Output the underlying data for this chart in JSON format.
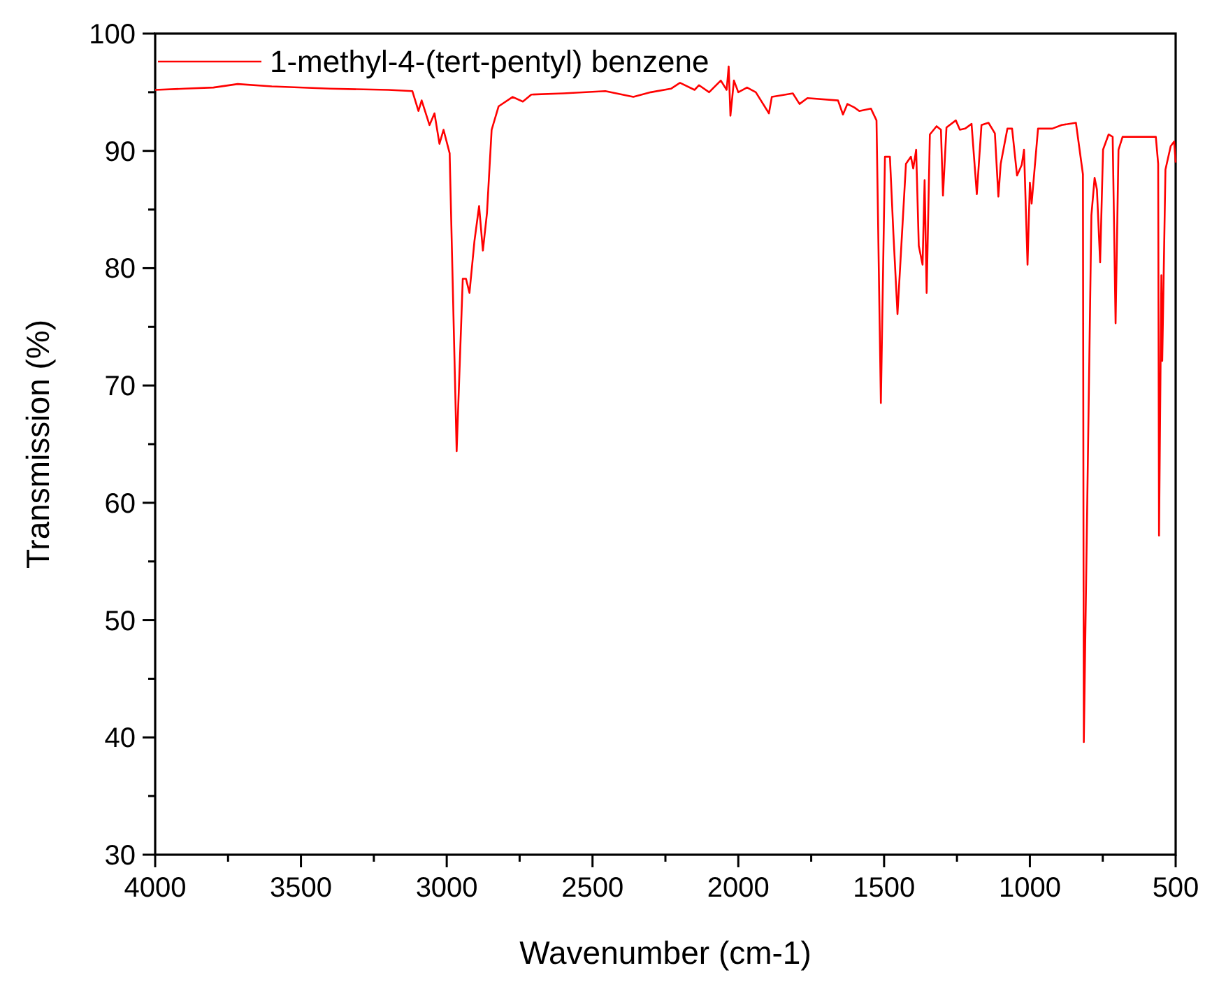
{
  "chart_data": {
    "type": "line",
    "xlabel": "Wavenumber (cm-1)",
    "ylabel": "Transmission (%)",
    "xlim": [
      4000,
      500
    ],
    "ylim": [
      30,
      100
    ],
    "xticks": [
      4000,
      {
        "value": 3750,
        "label": null
      },
      3500,
      {
        "value": 3250,
        "label": null
      },
      3000,
      {
        "value": 2750,
        "label": null
      },
      2500,
      {
        "value": 2250,
        "label": null
      },
      2000,
      {
        "value": 1750,
        "label": null
      },
      1500,
      {
        "value": 1250,
        "label": null
      },
      1000,
      {
        "value": 750,
        "label": null
      },
      500
    ],
    "yticks": [
      30,
      {
        "value": 35,
        "label": null
      },
      40,
      {
        "value": 45,
        "label": null
      },
      50,
      {
        "value": 55,
        "label": null
      },
      60,
      {
        "value": 65,
        "label": null
      },
      70,
      {
        "value": 75,
        "label": null
      },
      80,
      {
        "value": 85,
        "label": null
      },
      90,
      {
        "value": 95,
        "label": null
      },
      100
    ],
    "grid": false,
    "legend": "top left",
    "line_style": "solid",
    "marker": "none",
    "series": [
      {
        "name": "1-methyl-4-(tert-pentyl) benzene",
        "color": "#ff0000",
        "x": [
          4000,
          3900,
          3800,
          3717,
          3600,
          3400,
          3200,
          3118,
          3097,
          3086,
          3059,
          3042,
          3025,
          3011,
          2990,
          2966,
          2945,
          2934,
          2922,
          2905,
          2889,
          2876,
          2862,
          2846,
          2822,
          2774,
          2739,
          2710,
          2600,
          2456,
          2360,
          2300,
          2231,
          2200,
          2150,
          2135,
          2100,
          2060,
          2040,
          2033,
          2027,
          2015,
          2000,
          1970,
          1940,
          1895,
          1885,
          1813,
          1790,
          1763,
          1658,
          1641,
          1626,
          1602,
          1585,
          1545,
          1526,
          1511,
          1497,
          1480,
          1468,
          1454,
          1425,
          1408,
          1400,
          1390,
          1381,
          1368,
          1361,
          1354,
          1343,
          1320,
          1305,
          1298,
          1286,
          1254,
          1240,
          1222,
          1200,
          1182,
          1166,
          1142,
          1120,
          1108,
          1100,
          1077,
          1061,
          1044,
          1028,
          1020,
          1008,
          1000,
          994,
          972,
          923,
          891,
          842,
          818,
          815,
          789,
          778,
          770,
          759,
          749,
          730,
          716,
          706,
          696,
          682,
          616,
          568,
          560,
          557,
          549,
          546,
          535,
          517,
          505,
          500
        ],
        "values": [
          95.2,
          95.3,
          95.4,
          95.7,
          95.5,
          95.3,
          95.2,
          95.1,
          93.4,
          94.3,
          92.2,
          93.2,
          90.6,
          91.8,
          89.8,
          64.4,
          79.1,
          79.1,
          77.9,
          82.3,
          85.3,
          81.5,
          84.7,
          91.8,
          93.8,
          94.6,
          94.2,
          94.8,
          94.9,
          95.1,
          94.6,
          95.0,
          95.3,
          95.8,
          95.2,
          95.6,
          95.0,
          96.0,
          95.2,
          97.2,
          93.0,
          96.0,
          95.0,
          95.4,
          95.0,
          93.2,
          94.6,
          94.9,
          94.0,
          94.5,
          94.3,
          93.1,
          94.0,
          93.7,
          93.4,
          93.6,
          92.6,
          68.5,
          89.5,
          89.5,
          82.9,
          76.1,
          88.9,
          89.5,
          88.5,
          90.1,
          81.9,
          80.3,
          87.5,
          77.9,
          91.4,
          92.1,
          91.8,
          86.2,
          92.0,
          92.6,
          91.8,
          91.9,
          92.3,
          86.3,
          92.2,
          92.4,
          91.5,
          86.1,
          88.9,
          91.9,
          91.9,
          87.9,
          88.8,
          90.1,
          80.3,
          87.3,
          85.5,
          91.9,
          91.9,
          92.2,
          92.4,
          88.0,
          39.6,
          84.5,
          87.7,
          86.7,
          80.5,
          90.1,
          91.4,
          91.2,
          75.3,
          90.1,
          91.2,
          91.2,
          91.2,
          88.9,
          57.2,
          79.4,
          72.1,
          88.4,
          90.4,
          90.8,
          89.0
        ]
      }
    ]
  }
}
